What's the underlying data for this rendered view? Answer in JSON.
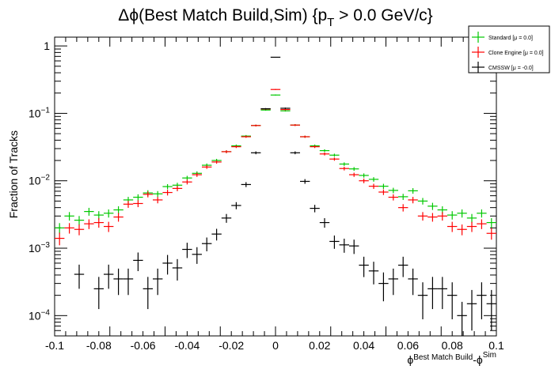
{
  "chart_data": {
    "type": "scatter",
    "title_main": "Δϕ(Best Match Build,Sim) {p",
    "title_sub": "T",
    "title_tail": " > 0.0 GeV/c}",
    "xlabel_main": "ϕ",
    "xlabel_sub": "Best Match Build",
    "xlabel_mid": "-ϕ",
    "xlabel_sup": "Sim",
    "ylabel": "Fraction of Tracks",
    "xlim": [
      -0.1,
      0.1
    ],
    "ylim": [
      5e-05,
      1.35
    ],
    "yscale": "log",
    "nbins": 45,
    "x_ticks": [
      "-0.1",
      "-0.08",
      "-0.06",
      "-0.04",
      "-0.02",
      "0",
      "0.02",
      "0.04",
      "0.06",
      "0.08",
      "0.1"
    ],
    "x_tick_values": [
      -0.1,
      -0.08,
      -0.06,
      -0.04,
      -0.02,
      0,
      0.02,
      0.04,
      0.06,
      0.08,
      0.1
    ],
    "y_ticks": [
      {
        "value": 1,
        "base": "1",
        "exp": ""
      },
      {
        "value": 0.1,
        "base": "10",
        "exp": "−1"
      },
      {
        "value": 0.01,
        "base": "10",
        "exp": "−2"
      },
      {
        "value": 0.001,
        "base": "10",
        "exp": "−3"
      },
      {
        "value": 0.0001,
        "base": "10",
        "exp": "−4"
      }
    ],
    "legend_position": "top-right",
    "series": [
      {
        "name": "Standard",
        "legend": "Standard  [μ = 0.0]",
        "color": "#00c800",
        "values": [
          0.002,
          0.003,
          0.0026,
          0.0035,
          0.0031,
          0.0033,
          0.0037,
          0.0052,
          0.0057,
          0.0066,
          0.0064,
          0.0082,
          0.0086,
          0.011,
          0.0129,
          0.017,
          0.02,
          0.027,
          0.033,
          0.046,
          0.066,
          0.112,
          0.187,
          0.109,
          0.067,
          0.045,
          0.033,
          0.028,
          0.024,
          0.0177,
          0.015,
          0.012,
          0.0105,
          0.0083,
          0.0072,
          0.0058,
          0.0071,
          0.005,
          0.0042,
          0.0037,
          0.0031,
          0.0033,
          0.0028,
          0.0033,
          0.0024
        ]
      },
      {
        "name": "Clone Engine",
        "legend": "Clone Engine  [μ = 0.0]",
        "color": "#ff0000",
        "values": [
          0.0014,
          0.002,
          0.0019,
          0.0023,
          0.0024,
          0.0021,
          0.0029,
          0.0045,
          0.0046,
          0.0063,
          0.0052,
          0.0067,
          0.0077,
          0.0096,
          0.0123,
          0.016,
          0.019,
          0.027,
          0.032,
          0.045,
          0.066,
          0.116,
          0.226,
          0.114,
          0.067,
          0.045,
          0.032,
          0.025,
          0.021,
          0.0152,
          0.0123,
          0.01,
          0.0083,
          0.0068,
          0.0057,
          0.004,
          0.0052,
          0.003,
          0.0029,
          0.003,
          0.0021,
          0.0019,
          0.0021,
          0.0023,
          0.00166
        ]
      },
      {
        "name": "CMSSW",
        "legend": "CMSSW  [μ = -0.0]",
        "color": "#000000",
        "values": [
          null,
          null,
          0.00041,
          null,
          0.00025,
          0.00041,
          0.00035,
          0.00035,
          0.00066,
          0.00025,
          0.00035,
          0.0006,
          0.00051,
          0.00096,
          0.00081,
          0.00117,
          0.00162,
          0.0028,
          0.0043,
          0.0088,
          0.026,
          0.117,
          0.68,
          0.119,
          0.026,
          0.0098,
          0.0039,
          0.0024,
          0.00126,
          0.00112,
          0.00108,
          0.00056,
          0.00046,
          0.0003,
          0.00035,
          0.00056,
          0.00035,
          0.0002,
          0.00025,
          0.00025,
          0.0002,
          0.0001,
          0.00015,
          0.0002,
          0.00015
        ]
      }
    ]
  }
}
